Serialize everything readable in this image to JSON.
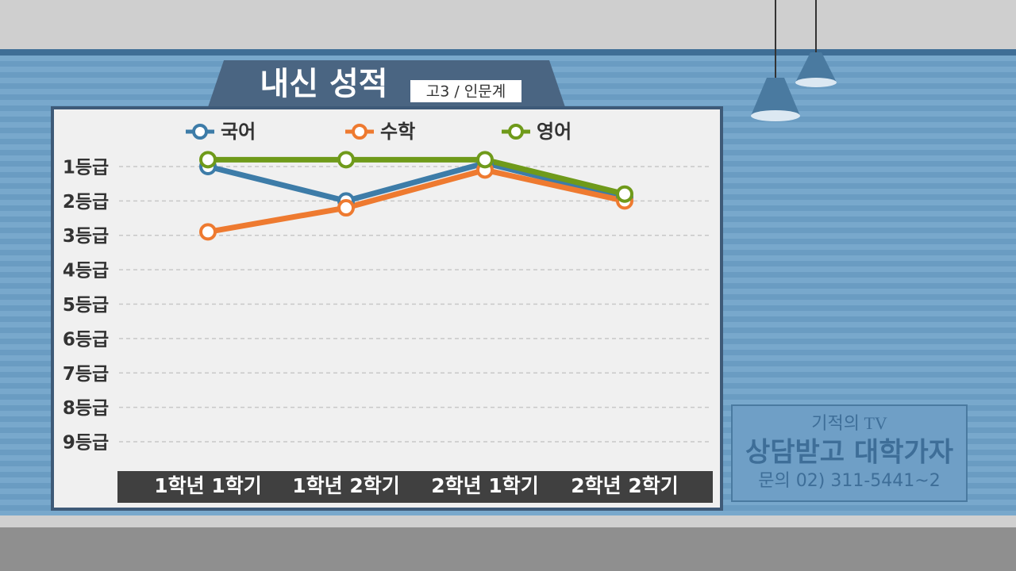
{
  "chart_data": {
    "type": "line",
    "title": "내신 성적",
    "subtitle": "고3 / 인문계",
    "categories": [
      "1학년 1학기",
      "1학년 2학기",
      "2학년 1학기",
      "2학년 2학기"
    ],
    "series": [
      {
        "name": "국어",
        "color": "#3d7ca8",
        "values": [
          1.0,
          2.0,
          0.9,
          1.9
        ]
      },
      {
        "name": "수학",
        "color": "#ee7a30",
        "values": [
          2.9,
          2.2,
          1.1,
          2.0
        ]
      },
      {
        "name": "영어",
        "color": "#6f9a1a",
        "values": [
          0.8,
          0.8,
          0.8,
          1.8
        ]
      }
    ],
    "ylim": [
      9.5,
      0.5
    ],
    "yticks": [
      {
        "value": 1,
        "label": "1등급"
      },
      {
        "value": 2,
        "label": "2등급"
      },
      {
        "value": 3,
        "label": "3등급"
      },
      {
        "value": 4,
        "label": "4등급"
      },
      {
        "value": 5,
        "label": "5등급"
      },
      {
        "value": 6,
        "label": "6등급"
      },
      {
        "value": 7,
        "label": "7등급"
      },
      {
        "value": 8,
        "label": "8등급"
      },
      {
        "value": 9,
        "label": "9등급"
      }
    ],
    "grid": true
  },
  "logo": {
    "brand": "기적의 TV",
    "slogan": "상담받고 대학가자",
    "contact": "문의 02) 311-5441~2"
  }
}
